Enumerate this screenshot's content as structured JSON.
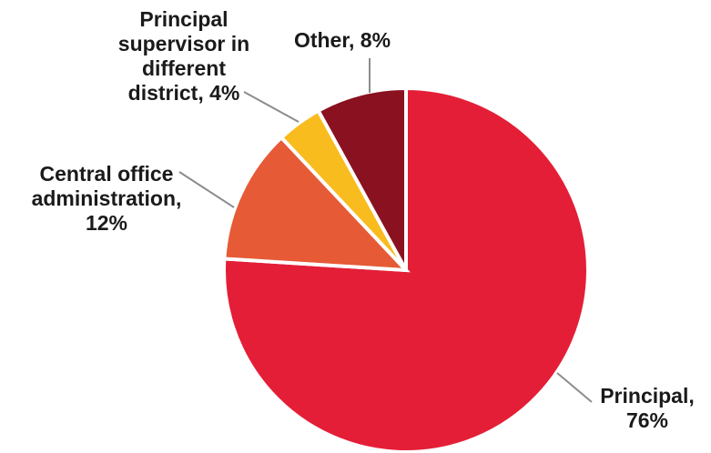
{
  "chart_data": {
    "type": "pie",
    "title": "",
    "slices": [
      {
        "label": "Principal",
        "value": 76,
        "display": [
          "Principal,",
          "76%"
        ],
        "color": "#e41e37"
      },
      {
        "label": "Central office administration",
        "value": 12,
        "display": [
          "Central office",
          "administration,",
          "12%"
        ],
        "color": "#e65a35"
      },
      {
        "label": "Principal supervisor in different district",
        "value": 4,
        "display": [
          "Principal",
          "supervisor in",
          "different",
          "district,  4%"
        ],
        "color": "#f9bc1f"
      },
      {
        "label": "Other",
        "value": 8,
        "display": [
          "Other, 8%"
        ],
        "color": "#8a1120"
      }
    ],
    "start": "12 o'clock",
    "direction": "clockwise",
    "legend": "none",
    "labels": "outside with leader lines"
  }
}
